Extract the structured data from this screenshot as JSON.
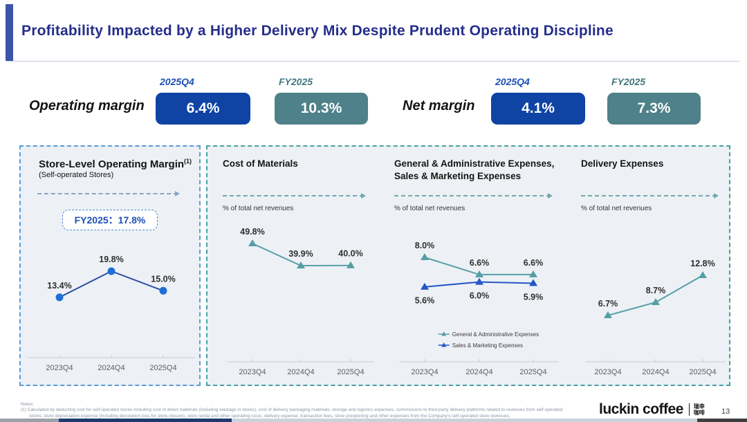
{
  "slide": {
    "title": "Profitability Impacted by a Higher Delivery Mix Despite Prudent Operating Discipline",
    "page_number": "13",
    "notes_label": "Notes:",
    "note_1": "(1)  Calculated by deducting cost for self-operated stores including cost of direct materials (including wastage in stores), cost of delivery packaging materials, storage and logistics expenses, commissions to third-party delivery platforms related to revenues from self-operated stores, store depreciation expense (including decoration loss for store closure), store rental and other operating costs, delivery expense, transaction fees, store preopening and other expenses from the Company's self-operated store revenues.",
    "brand": {
      "logo": "luckin coffee",
      "logo_cn_top": "瑞幸",
      "logo_cn_bottom": "咖啡"
    }
  },
  "margin_summary": {
    "operating": {
      "label": "Operating margin",
      "q4_header": "2025Q4",
      "q4_value": "6.4%",
      "fy_header": "FY2025",
      "fy_value": "10.3%"
    },
    "net": {
      "label": "Net margin",
      "q4_header": "2025Q4",
      "q4_value": "4.1%",
      "fy_header": "FY2025",
      "fy_value": "7.3%"
    }
  },
  "colors": {
    "accent_blue_box": "#0f43a4",
    "accent_teal_box": "#4e8189",
    "title_navy": "#252e8a",
    "panel1_border_blue": "#5b9bd5",
    "panel2_border_teal": "#46a0a3",
    "chart_blue_line": "#2e4fa3",
    "chart_blue_marker": "#1e6fd6",
    "chart_teal": "#569ea6",
    "chart_sales_marketing_blue": "#2356c7"
  },
  "chart_data": [
    {
      "type": "line",
      "title": "Store-Level Operating Margin",
      "title_note_ref": "(1)",
      "subtitle": "(Self-operated Stores)",
      "annotation": "FY2025：17.8%",
      "categories": [
        "2023Q4",
        "2024Q4",
        "2025Q4"
      ],
      "values": [
        13.4,
        19.8,
        15.0
      ],
      "labels": [
        "13.4%",
        "19.8%",
        "15.0%"
      ],
      "unit": "%",
      "grid": false
    },
    {
      "type": "line",
      "title": "Cost of Materials",
      "ylabel": "% of total net revenues",
      "categories": [
        "2023Q4",
        "2024Q4",
        "2025Q4"
      ],
      "values": [
        49.8,
        39.9,
        40.0
      ],
      "labels": [
        "49.8%",
        "39.9%",
        "40.0%"
      ],
      "unit": "%",
      "grid": false
    },
    {
      "type": "line",
      "title": "General & Administrative Expenses, Sales & Marketing Expenses",
      "ylabel": "% of total net revenues",
      "categories": [
        "2023Q4",
        "2024Q4",
        "2025Q4"
      ],
      "series": [
        {
          "name": "General & Administrative Expenses",
          "values": [
            8.0,
            6.6,
            6.6
          ],
          "labels": [
            "8.0%",
            "6.6%",
            "6.6%"
          ]
        },
        {
          "name": "Sales & Marketing Expenses",
          "values": [
            5.6,
            6.0,
            5.9
          ],
          "labels": [
            "5.6%",
            "6.0%",
            "5.9%"
          ]
        }
      ],
      "legend_position": "bottom",
      "unit": "%",
      "grid": false
    },
    {
      "type": "line",
      "title": "Delivery Expenses",
      "ylabel": "% of total net revenues",
      "categories": [
        "2023Q4",
        "2024Q4",
        "2025Q4"
      ],
      "values": [
        6.7,
        8.7,
        12.8
      ],
      "labels": [
        "6.7%",
        "8.7%",
        "12.8%"
      ],
      "unit": "%",
      "grid": false
    }
  ]
}
